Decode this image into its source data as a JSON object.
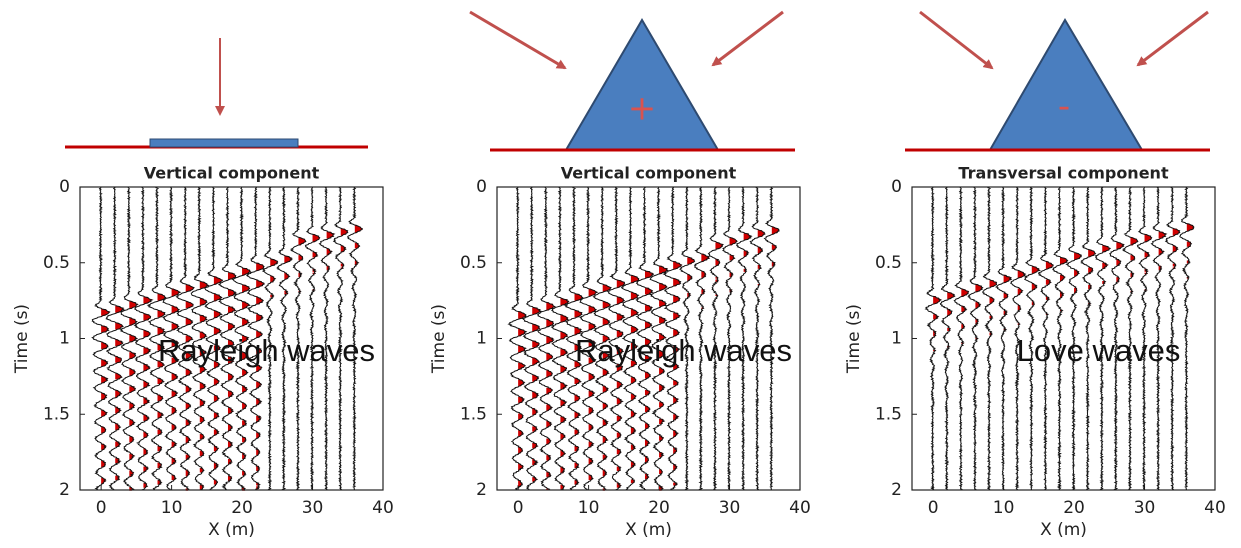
{
  "chart_data": [
    {
      "type": "wiggle",
      "title": "Vertical component",
      "x_label": "X (m)",
      "y_label": "Time (s)",
      "xlim": [
        -3,
        40
      ],
      "ylim": [
        0,
        2
      ],
      "y_reversed": true,
      "xticks": [
        0,
        10,
        20,
        30,
        40
      ],
      "yticks": [
        0,
        0.5,
        1,
        1.5,
        2
      ],
      "x": [
        0,
        2,
        4,
        6,
        8,
        10,
        12,
        14,
        16,
        18,
        20,
        22,
        24,
        26,
        28,
        30,
        32,
        34,
        36
      ],
      "values": [
        0.8,
        0.78,
        0.75,
        0.72,
        0.7,
        0.67,
        0.64,
        0.62,
        0.59,
        0.56,
        0.53,
        0.5,
        0.47,
        0.45,
        0.33,
        0.31,
        0.29,
        0.27,
        0.25
      ],
      "annotation": "Rayleigh waves"
    },
    {
      "type": "wiggle",
      "title": "Vertical component",
      "x_label": "X (m)",
      "y_label": "Time (s)",
      "xlim": [
        -3,
        40
      ],
      "ylim": [
        0,
        2
      ],
      "y_reversed": true,
      "xticks": [
        0,
        10,
        20,
        30,
        40
      ],
      "yticks": [
        0,
        0.5,
        1,
        1.5,
        2
      ],
      "x": [
        0,
        2,
        4,
        6,
        8,
        10,
        12,
        14,
        16,
        18,
        20,
        22,
        24,
        26,
        28,
        30,
        32,
        34,
        36
      ],
      "values": [
        0.82,
        0.79,
        0.76,
        0.73,
        0.7,
        0.67,
        0.64,
        0.61,
        0.58,
        0.55,
        0.52,
        0.49,
        0.46,
        0.44,
        0.36,
        0.33,
        0.3,
        0.28,
        0.26
      ],
      "annotation": "Rayleigh waves",
      "symbol": "+"
    },
    {
      "type": "wiggle",
      "title": "Transversal component",
      "x_label": "X (m)",
      "y_label": "Time (s)",
      "xlim": [
        -3,
        40
      ],
      "ylim": [
        0,
        2
      ],
      "y_reversed": true,
      "xticks": [
        0,
        10,
        20,
        30,
        40
      ],
      "yticks": [
        0,
        0.5,
        1,
        1.5,
        2
      ],
      "x": [
        0,
        2,
        4,
        6,
        8,
        10,
        12,
        14,
        16,
        18,
        20,
        22,
        24,
        26,
        28,
        30,
        32,
        34,
        36
      ],
      "values": [
        0.72,
        0.69,
        0.67,
        0.64,
        0.61,
        0.58,
        0.55,
        0.52,
        0.49,
        0.46,
        0.43,
        0.41,
        0.38,
        0.36,
        0.33,
        0.31,
        0.29,
        0.27,
        0.24
      ],
      "annotation": "Love waves",
      "symbol": "-"
    }
  ]
}
